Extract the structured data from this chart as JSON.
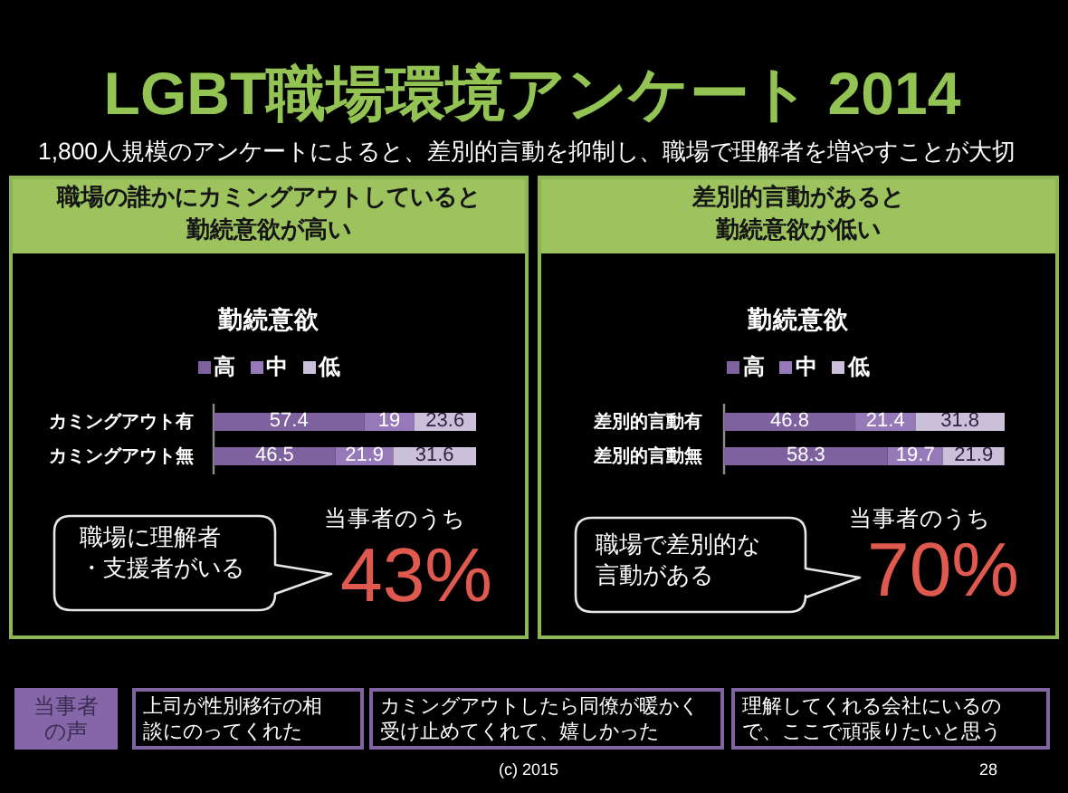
{
  "chart_data": [
    {
      "type": "other",
      "title": "LGBT職場環境アンケート 2014",
      "subtitle": "1,800人規模のアンケートによると、差別的言動を抑制し、職場で理解者を増やすことが大切"
    },
    {
      "type": "bar",
      "orientation": "horizontal",
      "stacked": true,
      "title": "職場の誰かにカミングアウトしていると勤続意欲が高い",
      "subtitle": "勤続意欲",
      "categories": [
        "カミングアウト有",
        "カミングアウト無"
      ],
      "series": [
        {
          "name": "高",
          "color": "#7e619f",
          "values": [
            57.4,
            46.5
          ]
        },
        {
          "name": "中",
          "color": "#9679b8",
          "values": [
            19,
            21.9
          ]
        },
        {
          "name": "低",
          "color": "#cbc0da",
          "values": [
            23.6,
            31.6
          ]
        }
      ],
      "xlim": [
        0,
        100
      ],
      "tick_labels": "y",
      "legend": "top",
      "data_labels": true,
      "annotations": [
        "職場に理解者・支援者がいる",
        "当事者のうち",
        "43%"
      ]
    },
    {
      "type": "bar",
      "orientation": "horizontal",
      "stacked": true,
      "title": "差別的言動があると勤続意欲が低い",
      "subtitle": "勤続意欲",
      "categories": [
        "差別的言動有",
        "差別的言動無"
      ],
      "series": [
        {
          "name": "高",
          "color": "#7e619f",
          "values": [
            46.8,
            58.3
          ]
        },
        {
          "name": "中",
          "color": "#9679b8",
          "values": [
            21.4,
            19.7
          ]
        },
        {
          "name": "低",
          "color": "#cbc0da",
          "values": [
            31.8,
            21.9
          ]
        }
      ],
      "xlim": [
        0,
        100
      ],
      "tick_labels": "y",
      "legend": "top",
      "data_labels": true,
      "annotations": [
        "職場で差別的な言動がある",
        "当事者のうち",
        "70%"
      ]
    },
    {
      "type": "other",
      "title": "当事者の声",
      "annotations": [
        "上司が性別移行の相談にのってくれた",
        "カミングアウトしたら同僚が暖かく受け止めてくれて、嬉しかった",
        "理解してくれる会社にいるので、ここで頑張りたいと思う",
        "(c) 2015",
        "28"
      ]
    }
  ]
}
